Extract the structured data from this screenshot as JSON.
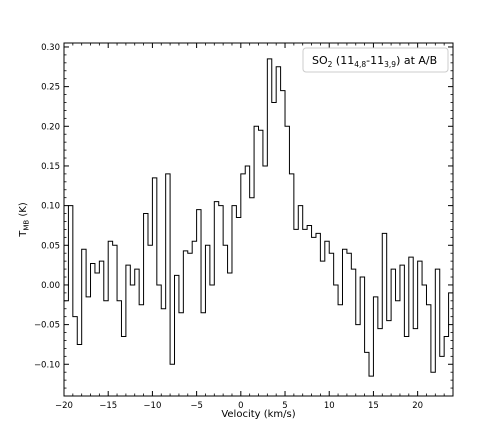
{
  "chart_data": {
    "type": "line",
    "step": true,
    "xlabel": "Velocity (km/s)",
    "ylabel": {
      "main": "T",
      "sub": "MB",
      "unit": " (K)"
    },
    "xlim": [
      -20,
      24
    ],
    "ylim": [
      -0.14,
      0.305
    ],
    "xticks": [
      -20,
      -15,
      -10,
      -5,
      0,
      5,
      10,
      15,
      20
    ],
    "xtick_labels": [
      "−20",
      "−15",
      "−10",
      "−5",
      "0",
      "5",
      "10",
      "15",
      "20"
    ],
    "yticks": [
      -0.1,
      -0.05,
      0.0,
      0.05,
      0.1,
      0.15,
      0.2,
      0.25,
      0.3
    ],
    "ytick_labels": [
      "−0.10",
      "−0.05",
      "0.00",
      "0.05",
      "0.10",
      "0.15",
      "0.20",
      "0.25",
      "0.30"
    ],
    "legend": {
      "position": "top-right",
      "parts": [
        {
          "text": "SO",
          "sub": "2"
        },
        {
          "text": " (11",
          "sub": "4,8"
        },
        {
          "text": "-11",
          "sub": "3,9"
        },
        {
          "text": ") at A/B",
          "sub": ""
        }
      ]
    },
    "series": [
      {
        "x": [
          -20.0,
          -19.5,
          -19.0,
          -18.5,
          -18.0,
          -17.5,
          -17.0,
          -16.5,
          -16.0,
          -15.5,
          -15.0,
          -14.5,
          -14.0,
          -13.5,
          -13.0,
          -12.5,
          -12.0,
          -11.5,
          -11.0,
          -10.5,
          -10.0,
          -9.5,
          -9.0,
          -8.5,
          -8.0,
          -7.5,
          -7.0,
          -6.5,
          -6.0,
          -5.5,
          -5.0,
          -4.5,
          -4.0,
          -3.5,
          -3.0,
          -2.5,
          -2.0,
          -1.5,
          -1.0,
          -0.5,
          0.0,
          0.5,
          1.0,
          1.5,
          2.0,
          2.5,
          3.0,
          3.5,
          4.0,
          4.5,
          5.0,
          5.5,
          6.0,
          6.5,
          7.0,
          7.5,
          8.0,
          8.5,
          9.0,
          9.5,
          10.0,
          10.5,
          11.0,
          11.5,
          12.0,
          12.5,
          13.0,
          13.5,
          14.0,
          14.5,
          15.0,
          15.5,
          16.0,
          16.5,
          17.0,
          17.5,
          18.0,
          18.5,
          19.0,
          19.5,
          20.0,
          20.5,
          21.0,
          21.5,
          22.0,
          22.5,
          23.0,
          23.5
        ],
        "y": [
          -0.02,
          0.1,
          -0.04,
          -0.075,
          0.045,
          -0.015,
          0.027,
          0.015,
          0.03,
          -0.02,
          0.055,
          0.05,
          -0.02,
          -0.065,
          0.025,
          0.0,
          0.02,
          -0.025,
          0.09,
          0.05,
          0.135,
          0.0,
          -0.03,
          0.14,
          -0.1,
          0.012,
          -0.035,
          0.043,
          0.04,
          0.055,
          0.095,
          -0.035,
          0.05,
          0.0,
          0.105,
          0.1,
          0.05,
          0.015,
          0.1,
          0.085,
          0.14,
          0.15,
          0.11,
          0.2,
          0.195,
          0.15,
          0.285,
          0.23,
          0.275,
          0.245,
          0.2,
          0.14,
          0.07,
          0.1,
          0.07,
          0.075,
          0.06,
          0.065,
          0.03,
          0.055,
          0.04,
          0.0,
          -0.025,
          0.045,
          0.04,
          0.02,
          -0.05,
          0.01,
          -0.085,
          -0.115,
          -0.015,
          -0.055,
          0.065,
          -0.045,
          0.02,
          -0.02,
          0.025,
          -0.065,
          0.035,
          -0.055,
          0.03,
          0.0,
          -0.025,
          -0.11,
          0.02,
          -0.09,
          -0.065,
          -0.01
        ],
        "step_end": 24.0
      }
    ]
  }
}
